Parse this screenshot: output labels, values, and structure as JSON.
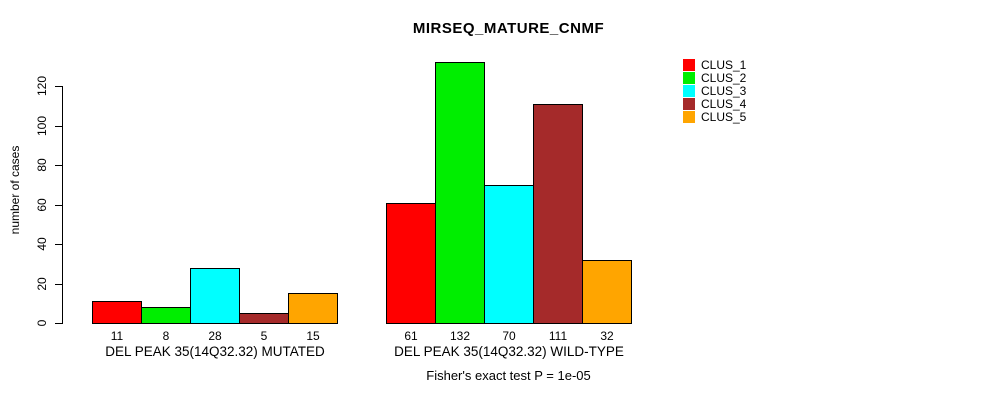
{
  "title": "MIRSEQ_MATURE_CNMF",
  "subtitle": "Fisher's exact test P = 1e-05",
  "ylabel": "number of cases",
  "chart_data": {
    "type": "bar",
    "title": "MIRSEQ_MATURE_CNMF",
    "xlabel": "",
    "ylabel": "number of cases",
    "ylim": [
      0,
      132
    ],
    "yticks": [
      0,
      20,
      40,
      60,
      80,
      100,
      120
    ],
    "grid": false,
    "legend_position": "right",
    "annotation": "Fisher's exact test P = 1e-05",
    "series": [
      {
        "name": "CLUS_1",
        "color": "#FF0000"
      },
      {
        "name": "CLUS_2",
        "color": "#00EE00"
      },
      {
        "name": "CLUS_3",
        "color": "#00FFFF"
      },
      {
        "name": "CLUS_4",
        "color": "#A52A2A"
      },
      {
        "name": "CLUS_5",
        "color": "#FFA500"
      }
    ],
    "groups": [
      {
        "label": "DEL PEAK 35(14Q32.32) MUTATED",
        "values": [
          11,
          8,
          28,
          5,
          15
        ]
      },
      {
        "label": "DEL PEAK 35(14Q32.32) WILD-TYPE",
        "values": [
          61,
          132,
          70,
          111,
          32
        ]
      }
    ]
  }
}
